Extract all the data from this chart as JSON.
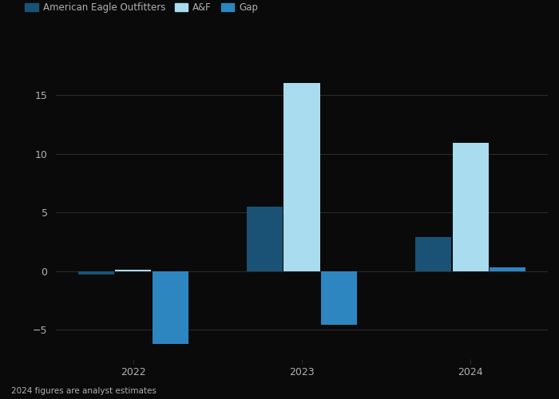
{
  "categories": [
    "2022",
    "2023",
    "2024"
  ],
  "series": {
    "American Eagle Outfitters": {
      "values": [
        -0.3,
        5.5,
        2.9
      ],
      "color": "#1a5276"
    },
    "A&F": {
      "values": [
        0.15,
        16.0,
        10.9
      ],
      "color": "#aadcef"
    },
    "Gap": {
      "values": [
        -6.2,
        -4.6,
        0.3
      ],
      "color": "#2e86c1"
    }
  },
  "ylim": [
    -7.5,
    18
  ],
  "yticks": [
    -5,
    0,
    5,
    10,
    15
  ],
  "footnote": "2024 figures are analyst estimates",
  "bg_color": "#0a0a0a",
  "text_color": "#b0b0b0",
  "grid_color": "#2a2a2a",
  "bar_width": 0.22,
  "legend_labels": [
    "American Eagle Outfitters",
    "A&F",
    "Gap"
  ],
  "legend_colors": [
    "#1a5276",
    "#aadcef",
    "#2e86c1"
  ]
}
